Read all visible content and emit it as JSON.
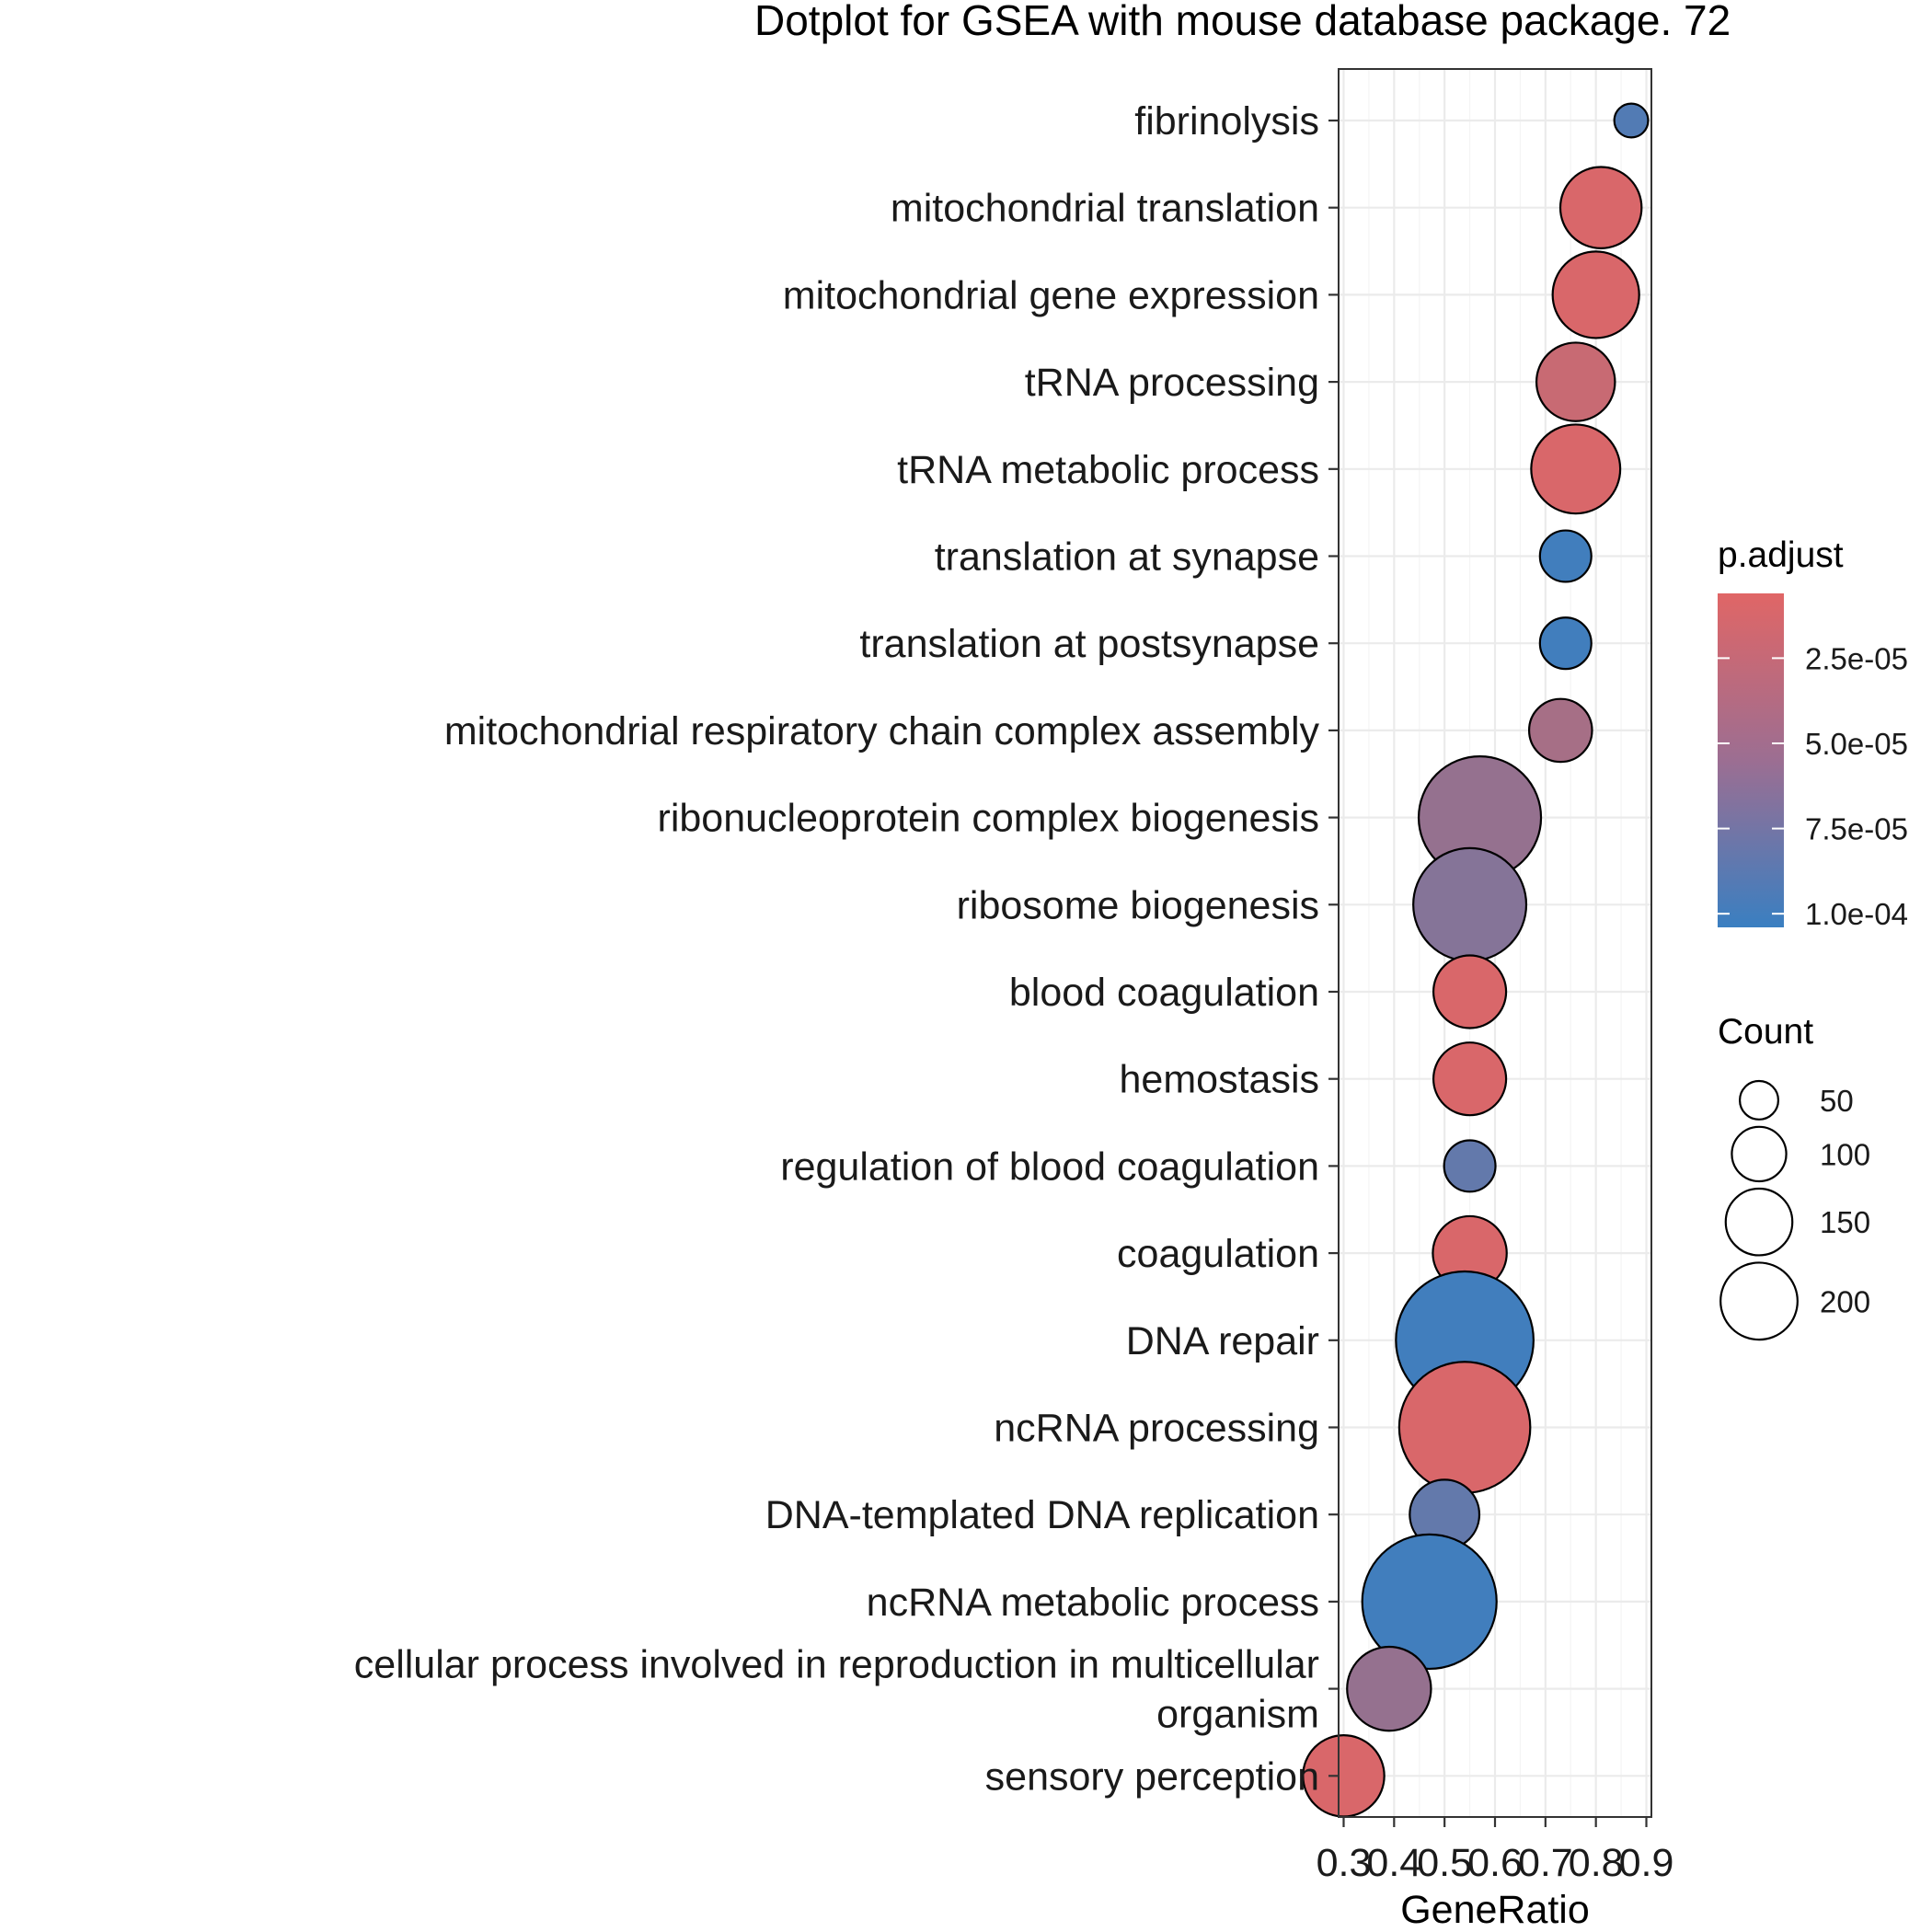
{
  "chart_data": {
    "type": "scatter",
    "title": "Dotplot for GSEA with mouse database package. 72",
    "xlabel": "GeneRatio",
    "ylabel": "",
    "xlim": [
      0.29,
      0.91
    ],
    "xticks": [
      0.3,
      0.4,
      0.5,
      0.6,
      0.7,
      0.8,
      0.9
    ],
    "xtick_labels": [
      "0.3",
      "0.4",
      "0.5",
      "0.6",
      "0.7",
      "0.8",
      "0.9"
    ],
    "grid": true,
    "legend_position": "right",
    "color_legend": {
      "title": "p.adjust",
      "low_color": "#E06666",
      "high_color": "#3A7FC1",
      "breaks": [
        2.5e-05,
        5e-05,
        7.5e-05,
        0.0001
      ],
      "labels": [
        "2.5e-05",
        "5.0e-05",
        "7.5e-05",
        "1.0e-04"
      ],
      "range": [
        6e-06,
        0.000104
      ]
    },
    "size_legend": {
      "title": "Count",
      "breaks": [
        50,
        100,
        150,
        200
      ],
      "labels": [
        "50",
        "100",
        "150",
        "200"
      ]
    },
    "points": [
      {
        "term": "fibrinolysis",
        "gene_ratio": 0.87,
        "count": 13,
        "p_adjust": 9e-05
      },
      {
        "term": "mitochondrial translation",
        "gene_ratio": 0.81,
        "count": 75,
        "p_adjust": 1e-05
      },
      {
        "term": "mitochondrial gene expression",
        "gene_ratio": 0.8,
        "count": 85,
        "p_adjust": 1e-05
      },
      {
        "term": "tRNA processing",
        "gene_ratio": 0.76,
        "count": 70,
        "p_adjust": 2e-05
      },
      {
        "term": "tRNA metabolic process",
        "gene_ratio": 0.76,
        "count": 90,
        "p_adjust": 1e-05
      },
      {
        "term": "translation at synapse",
        "gene_ratio": 0.74,
        "count": 30,
        "p_adjust": 0.0001
      },
      {
        "term": "translation at postsynapse",
        "gene_ratio": 0.74,
        "count": 30,
        "p_adjust": 0.0001
      },
      {
        "term": "mitochondrial respiratory chain complex assembly",
        "gene_ratio": 0.73,
        "count": 45,
        "p_adjust": 4e-05
      },
      {
        "term": "ribonucleoprotein complex biogenesis",
        "gene_ratio": 0.57,
        "count": 170,
        "p_adjust": 5e-05
      },
      {
        "term": "ribosome biogenesis",
        "gene_ratio": 0.55,
        "count": 145,
        "p_adjust": 6e-05
      },
      {
        "term": "blood coagulation",
        "gene_ratio": 0.55,
        "count": 60,
        "p_adjust": 1e-05
      },
      {
        "term": "hemostasis",
        "gene_ratio": 0.55,
        "count": 60,
        "p_adjust": 1e-05
      },
      {
        "term": "regulation of blood coagulation",
        "gene_ratio": 0.55,
        "count": 30,
        "p_adjust": 8e-05
      },
      {
        "term": "coagulation",
        "gene_ratio": 0.55,
        "count": 62,
        "p_adjust": 1e-05
      },
      {
        "term": "DNA repair",
        "gene_ratio": 0.54,
        "count": 215,
        "p_adjust": 0.0001
      },
      {
        "term": "ncRNA processing",
        "gene_ratio": 0.54,
        "count": 195,
        "p_adjust": 1e-05
      },
      {
        "term": "DNA-templated DNA replication",
        "gene_ratio": 0.5,
        "count": 55,
        "p_adjust": 8e-05
      },
      {
        "term": "ncRNA metabolic process",
        "gene_ratio": 0.47,
        "count": 205,
        "p_adjust": 0.0001
      },
      {
        "term": "cellular process involved in reproduction in multicellular organism",
        "gene_ratio": 0.39,
        "count": 80,
        "p_adjust": 5e-05
      },
      {
        "term": "sensory perception",
        "gene_ratio": 0.3,
        "count": 75,
        "p_adjust": 1e-05
      }
    ]
  }
}
